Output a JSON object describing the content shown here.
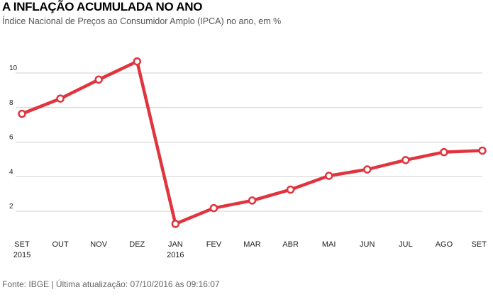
{
  "header": {
    "title": "A INFLAÇÃO ACUMULADA NO ANO",
    "subtitle": "Índice Nacional de Preços ao Consumidor Amplo (IPCA) no ano, em %"
  },
  "footer": {
    "source": "Fonte: IBGE | Última atualização: 07/10/2016 às 09:16:07"
  },
  "colors": {
    "series": "#e0343e",
    "grid": "#cfcfcf"
  },
  "chart_data": {
    "type": "line",
    "title": "A INFLAÇÃO ACUMULADA NO ANO",
    "subtitle": "Índice Nacional de Preços ao Consumidor Amplo (IPCA) no ano, em %",
    "xlabel": "",
    "ylabel": "",
    "categories": [
      "SET",
      "OUT",
      "NOV",
      "DEZ",
      "JAN",
      "FEV",
      "MAR",
      "ABR",
      "MAI",
      "JUN",
      "JUL",
      "AGO",
      "SET"
    ],
    "category_years": [
      "2015",
      "",
      "",
      "",
      "2016",
      "",
      "",
      "",
      "",
      "",
      "",
      "",
      ""
    ],
    "yticks": [
      2,
      4,
      6,
      8,
      10
    ],
    "ylim": [
      0,
      12
    ],
    "grid": true,
    "legend": "none",
    "series": [
      {
        "values": [
          7.64,
          8.52,
          9.62,
          10.67,
          1.27,
          2.18,
          2.62,
          3.25,
          4.05,
          4.42,
          4.96,
          5.42,
          5.51
        ]
      }
    ]
  }
}
